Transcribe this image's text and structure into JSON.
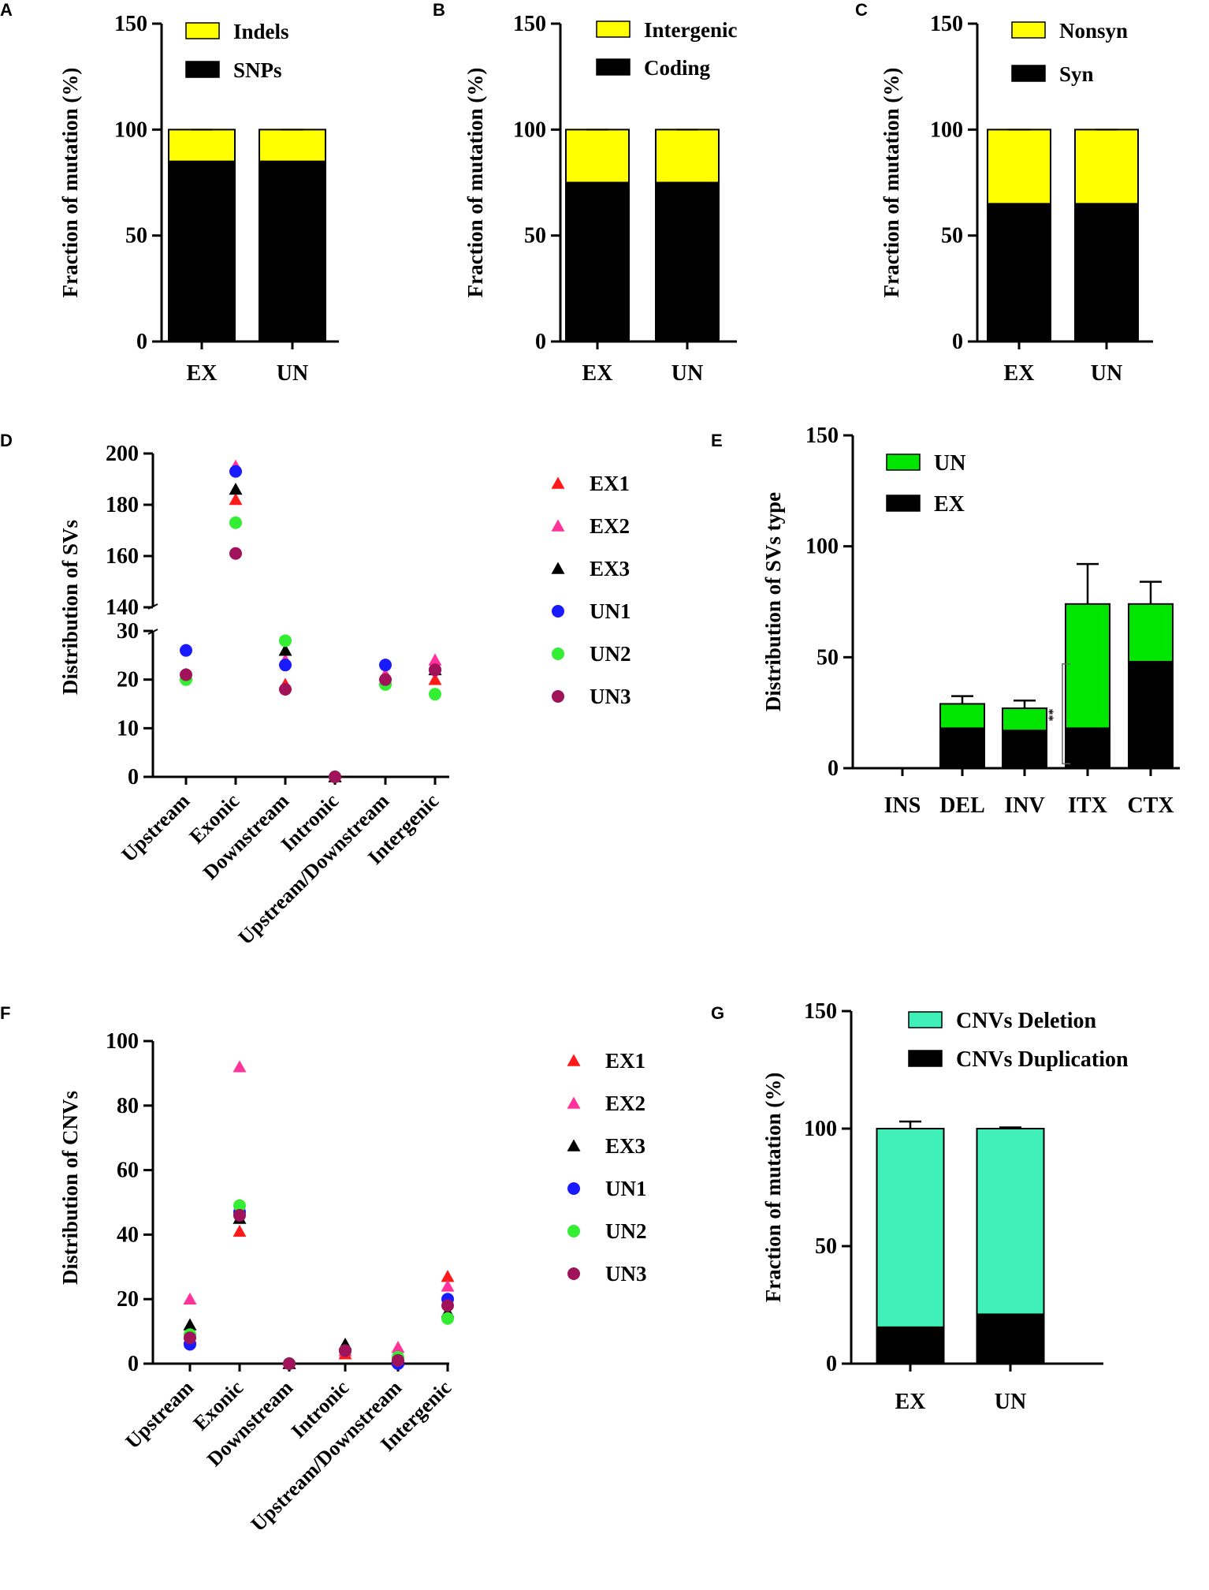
{
  "figure": {
    "colors": {
      "yellow": "#ffff00",
      "black": "#000000",
      "green": "#00e600",
      "teal": "#40f0b8",
      "red": "#ff1a1a",
      "pink": "#ff3399",
      "blue": "#1a1aff",
      "lightgreen": "#33ee33",
      "maroon": "#a0135a"
    }
  },
  "chart_data": [
    {
      "panel": "A",
      "type": "bar",
      "stacked": true,
      "ylabel": "Fraction of mutation (%)",
      "ylim": [
        0,
        150
      ],
      "yticks": [
        0,
        50,
        100,
        150
      ],
      "categories": [
        "EX",
        "UN"
      ],
      "series": [
        {
          "name": "SNPs",
          "values": [
            85,
            85
          ],
          "color": "#000000"
        },
        {
          "name": "Indels",
          "values": [
            15,
            15
          ],
          "color": "#ffff00"
        }
      ],
      "legend": [
        "Indels",
        "SNPs"
      ]
    },
    {
      "panel": "B",
      "type": "bar",
      "stacked": true,
      "ylabel": "Fraction of mutation (%)",
      "ylim": [
        0,
        150
      ],
      "yticks": [
        0,
        50,
        100,
        150
      ],
      "categories": [
        "EX",
        "UN"
      ],
      "series": [
        {
          "name": "Coding",
          "values": [
            75,
            75
          ],
          "color": "#000000"
        },
        {
          "name": "Intergenic",
          "values": [
            25,
            25
          ],
          "color": "#ffff00"
        }
      ],
      "legend": [
        "Intergenic",
        "Coding"
      ]
    },
    {
      "panel": "C",
      "type": "bar",
      "stacked": true,
      "ylabel": "Fraction of mutation (%)",
      "ylim": [
        0,
        150
      ],
      "yticks": [
        0,
        50,
        100,
        150
      ],
      "categories": [
        "EX",
        "UN"
      ],
      "series": [
        {
          "name": "Syn",
          "values": [
            65,
            65
          ],
          "color": "#000000"
        },
        {
          "name": "Nonsyn",
          "values": [
            35,
            35
          ],
          "color": "#ffff00"
        }
      ],
      "legend": [
        "Nonsyn",
        "Syn"
      ]
    },
    {
      "panel": "D",
      "type": "scatter",
      "ylabel": "Distribution of SVs",
      "ylim_lower": [
        0,
        30
      ],
      "yticks_lower": [
        0,
        10,
        20,
        30
      ],
      "ylim_upper": [
        140,
        200
      ],
      "yticks_upper": [
        140,
        160,
        180,
        200
      ],
      "categories": [
        "Upstream",
        "Exonic",
        "Downstream",
        "Intronic",
        "Upstream/Downstream",
        "Intergenic"
      ],
      "series": [
        {
          "name": "EX1",
          "marker": "triangle",
          "color": "#ff1a1a",
          "values": [
            21,
            182,
            19,
            0,
            21,
            20
          ]
        },
        {
          "name": "EX2",
          "marker": "triangle",
          "color": "#ff3399",
          "values": [
            21,
            195,
            24,
            0,
            21,
            24
          ]
        },
        {
          "name": "EX3",
          "marker": "triangle",
          "color": "#000000",
          "values": [
            21,
            186,
            26,
            0,
            20,
            22
          ]
        },
        {
          "name": "UN1",
          "marker": "circle",
          "color": "#1a1aff",
          "values": [
            26,
            193,
            23,
            0,
            23,
            22
          ]
        },
        {
          "name": "UN2",
          "marker": "circle",
          "color": "#33ee33",
          "values": [
            20,
            173,
            28,
            0,
            19,
            17
          ]
        },
        {
          "name": "UN3",
          "marker": "circle",
          "color": "#a0135a",
          "values": [
            21,
            161,
            18,
            0,
            20,
            22
          ]
        }
      ]
    },
    {
      "panel": "E",
      "type": "bar",
      "stacked": true,
      "ylabel": "Distribution of  SVs type",
      "ylim": [
        0,
        150
      ],
      "yticks": [
        0,
        50,
        100,
        150
      ],
      "categories": [
        "INS",
        "DEL",
        "INV",
        "ITX",
        "CTX"
      ],
      "series": [
        {
          "name": "EX",
          "values": [
            0,
            18,
            17,
            18,
            48
          ],
          "errors": [
            0,
            1,
            1,
            3,
            1.5
          ],
          "color": "#000000"
        },
        {
          "name": "UN",
          "values": [
            0,
            11,
            10,
            56,
            26
          ],
          "errors": [
            0,
            3.5,
            3.5,
            18,
            10
          ],
          "color": "#00e600"
        }
      ],
      "legend": [
        "UN",
        "EX"
      ],
      "annotation": "**"
    },
    {
      "panel": "F",
      "type": "scatter",
      "ylabel": "Distribution of CNVs",
      "ylim": [
        0,
        100
      ],
      "yticks": [
        0,
        20,
        40,
        60,
        80,
        100
      ],
      "categories": [
        "Upstream",
        "Exonic",
        "Downstream",
        "Intronic",
        "Upstream/Downstream",
        "Intergenic"
      ],
      "series": [
        {
          "name": "EX1",
          "marker": "triangle",
          "color": "#ff1a1a",
          "values": [
            8,
            41,
            0,
            3,
            1,
            27
          ]
        },
        {
          "name": "EX2",
          "marker": "triangle",
          "color": "#ff3399",
          "values": [
            20,
            92,
            0,
            4,
            5,
            24
          ]
        },
        {
          "name": "EX3",
          "marker": "triangle",
          "color": "#000000",
          "values": [
            12,
            45,
            0,
            6,
            2,
            16
          ]
        },
        {
          "name": "UN1",
          "marker": "circle",
          "color": "#1a1aff",
          "values": [
            6,
            47,
            0,
            4,
            0,
            20
          ]
        },
        {
          "name": "UN2",
          "marker": "circle",
          "color": "#33ee33",
          "values": [
            9,
            49,
            0,
            4,
            2,
            14
          ]
        },
        {
          "name": "UN3",
          "marker": "circle",
          "color": "#a0135a",
          "values": [
            8,
            46,
            0,
            4,
            1,
            18
          ]
        }
      ]
    },
    {
      "panel": "G",
      "type": "bar",
      "stacked": true,
      "ylabel": "Fraction of mutation (%)",
      "ylim": [
        0,
        150
      ],
      "yticks": [
        0,
        50,
        100,
        150
      ],
      "categories": [
        "EX",
        "UN"
      ],
      "series": [
        {
          "name": "CNVs Duplication",
          "values": [
            15.5,
            21
          ],
          "errors": [
            3,
            1
          ],
          "color": "#000000"
        },
        {
          "name": "CNVs Deletion",
          "values": [
            84.5,
            79
          ],
          "errors": [
            3,
            0.5
          ],
          "color": "#40f0b8"
        }
      ],
      "legend": [
        "CNVs Deletion",
        "CNVs Duplication"
      ]
    }
  ]
}
